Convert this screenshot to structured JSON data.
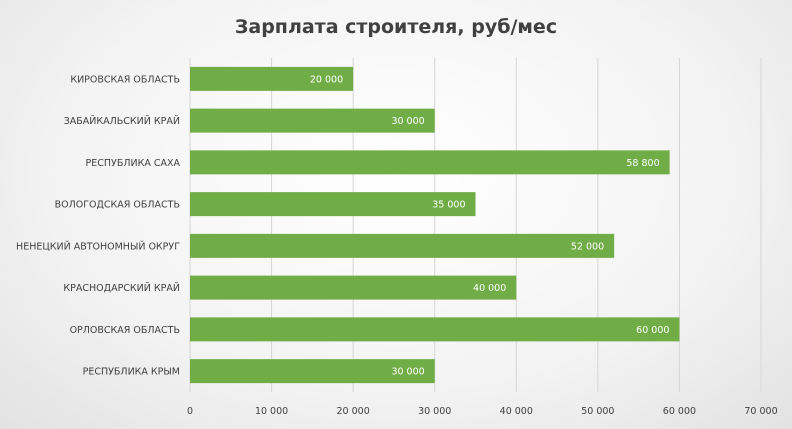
{
  "chart_data": {
    "type": "bar",
    "orientation": "horizontal",
    "title": "Зарплата строителя, руб/мес",
    "categories": [
      "КИРОВСКАЯ ОБЛАСТЬ",
      "ЗАБАЙКАЛЬСКИЙ КРАЙ",
      "РЕСПУБЛИКА САХА",
      "ВОЛОГОДСКАЯ ОБЛАСТЬ",
      "НЕНЕЦКИЙ АВТОНОМНЫЙ ОКРУГ",
      "КРАСНОДАРСКИЙ КРАЙ",
      "ОРЛОВСКАЯ ОБЛАСТЬ",
      "РЕСПУБЛИКА КРЫМ"
    ],
    "values": [
      20000,
      30000,
      58800,
      35000,
      52000,
      40000,
      60000,
      30000
    ],
    "value_labels": [
      "20 000",
      "30 000",
      "58 800",
      "35 000",
      "52 000",
      "40 000",
      "60 000",
      "30 000"
    ],
    "xlim": [
      0,
      70000
    ],
    "x_ticks": [
      0,
      10000,
      20000,
      30000,
      40000,
      50000,
      60000,
      70000
    ],
    "x_tick_labels": [
      "0",
      "10 000",
      "20 000",
      "30 000",
      "40 000",
      "50 000",
      "60 000",
      "70 000"
    ],
    "grid": true,
    "bar_color": "#70ad47",
    "label_color": "#ffffff"
  }
}
